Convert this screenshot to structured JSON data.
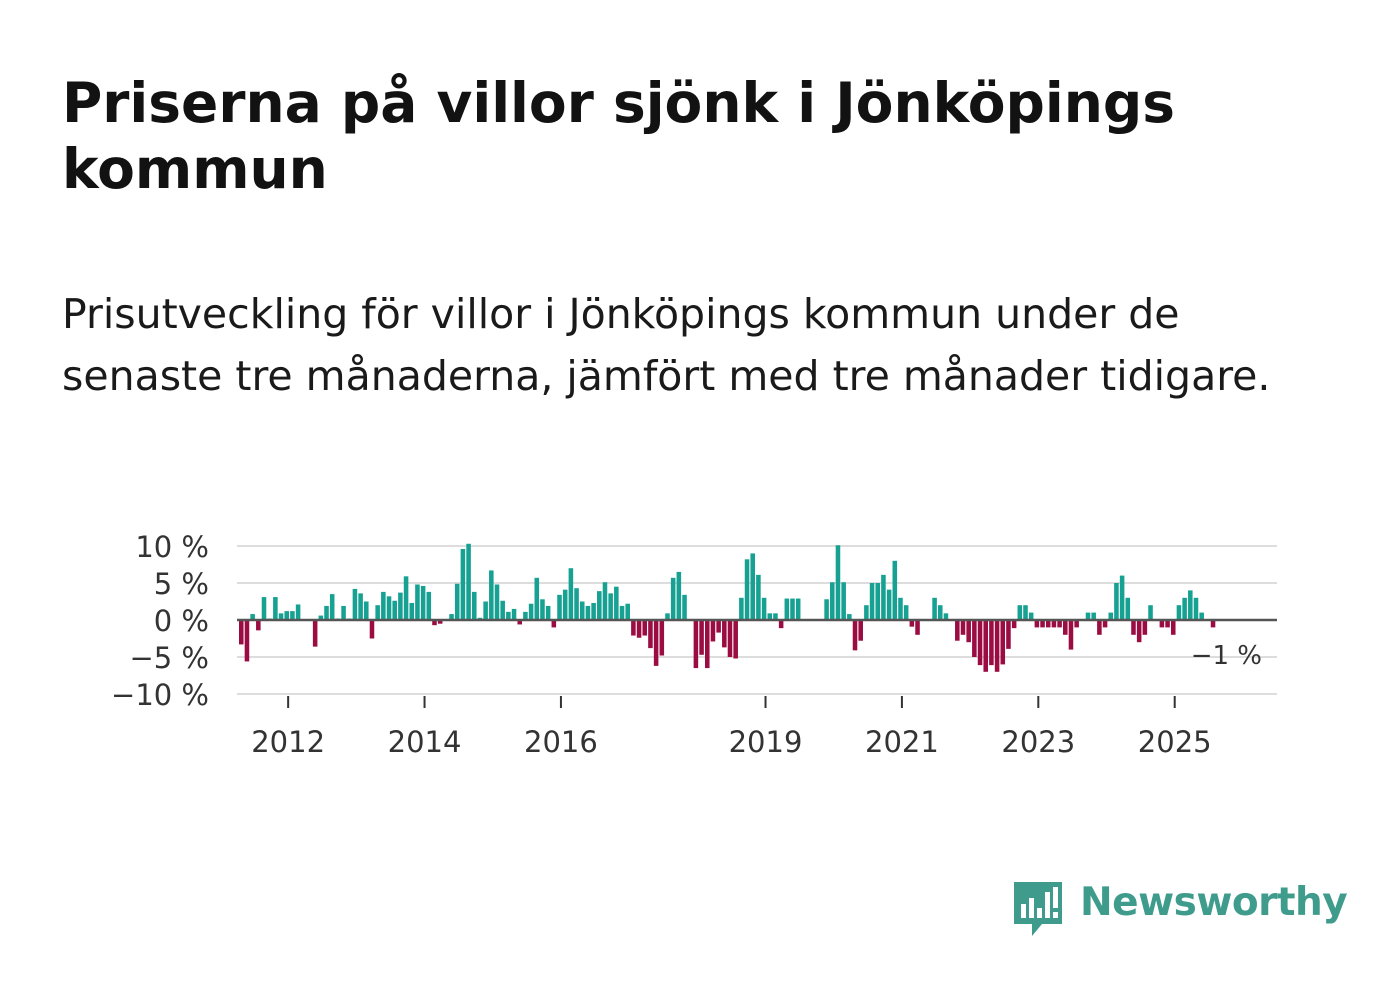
{
  "title": "Priserna på villor sjönk i Jönköpings kommun",
  "subtitle": "Prisutveckling för villor i Jönköpings kommun under de senaste tre månaderna, jämfört med tre månader tidigare.",
  "brand": {
    "name": "Newsworthy",
    "color": "#3f9c8d"
  },
  "colors": {
    "positive": "#16a192",
    "negative": "#9b0d42",
    "zero_line": "#555555",
    "grid": "#dddddd"
  },
  "chart_data": {
    "type": "bar",
    "title": "Priserna på villor sjönk i Jönköpings kommun",
    "xlabel": "",
    "ylabel": "",
    "ylim": [
      -10,
      10
    ],
    "y_ticks": [
      {
        "value": 10,
        "label": "10 %"
      },
      {
        "value": 5,
        "label": "5 %"
      },
      {
        "value": 0,
        "label": "0 %"
      },
      {
        "value": -5,
        "label": "−5 %"
      },
      {
        "value": -10,
        "label": "−10 %"
      }
    ],
    "x_ticks": [
      {
        "value": 2012,
        "label": "2012"
      },
      {
        "value": 2014,
        "label": "2014"
      },
      {
        "value": 2016,
        "label": "2016"
      },
      {
        "value": 2019,
        "label": "2019"
      },
      {
        "value": 2021,
        "label": "2021"
      },
      {
        "value": 2023,
        "label": "2023"
      },
      {
        "value": 2025,
        "label": "2025"
      }
    ],
    "x_start": 2011.25,
    "x_end": 2026.5,
    "step": 0.08333,
    "end_label": "−1 %",
    "values": [
      -3.3,
      -5.6,
      0.8,
      -1.4,
      3.1,
      0.2,
      3.1,
      0.9,
      1.2,
      1.2,
      2.1,
      0.0,
      0.0,
      -3.6,
      0.6,
      1.9,
      3.5,
      0.2,
      1.9,
      0.2,
      4.2,
      3.6,
      2.5,
      -2.5,
      2.0,
      3.8,
      3.2,
      2.6,
      3.7,
      5.9,
      2.3,
      4.8,
      4.6,
      3.8,
      -0.7,
      -0.5,
      0.0,
      0.8,
      4.9,
      9.6,
      10.3,
      3.8,
      0.3,
      2.5,
      6.7,
      4.8,
      2.6,
      1.1,
      1.5,
      -0.6,
      1.1,
      2.2,
      5.7,
      2.8,
      1.9,
      -1.0,
      3.4,
      4.1,
      7.0,
      4.3,
      2.5,
      1.9,
      2.3,
      3.9,
      5.1,
      3.6,
      4.5,
      1.9,
      2.2,
      -2.1,
      -2.4,
      -2.1,
      -3.8,
      -6.2,
      -4.8,
      0.9,
      5.7,
      6.5,
      3.4,
      0.0,
      -6.5,
      -4.7,
      -6.5,
      -2.9,
      -1.7,
      -3.7,
      -5.0,
      -5.2,
      3.0,
      8.2,
      9.0,
      6.1,
      3.0,
      0.9,
      0.9,
      -1.1,
      2.9,
      2.9,
      2.9,
      0.0,
      0.0,
      0.0,
      0.0,
      2.8,
      5.1,
      10.1,
      5.1,
      0.8,
      -4.1,
      -2.8,
      2.0,
      5.0,
      5.0,
      6.1,
      4.1,
      8.0,
      3.0,
      2.0,
      -0.9,
      -2.0,
      0.0,
      0.0,
      3.0,
      2.0,
      0.9,
      0.0,
      -2.8,
      -2.0,
      -3.0,
      -5.0,
      -6.1,
      -7.0,
      -6.1,
      -7.0,
      -6.0,
      -3.9,
      -1.1,
      2.0,
      2.0,
      1.0,
      -1.0,
      -1.0,
      -1.0,
      -1.0,
      -1.0,
      -2.0,
      -4.0,
      -1.0,
      0.0,
      1.0,
      1.0,
      -2.0,
      -1.0,
      1.0,
      5.0,
      6.0,
      3.0,
      -2.0,
      -3.0,
      -2.0,
      2.0,
      0.0,
      -1.0,
      -1.0,
      -2.0,
      2.0,
      3.0,
      4.0,
      3.0,
      1.0,
      0.0,
      -1.0
    ]
  }
}
